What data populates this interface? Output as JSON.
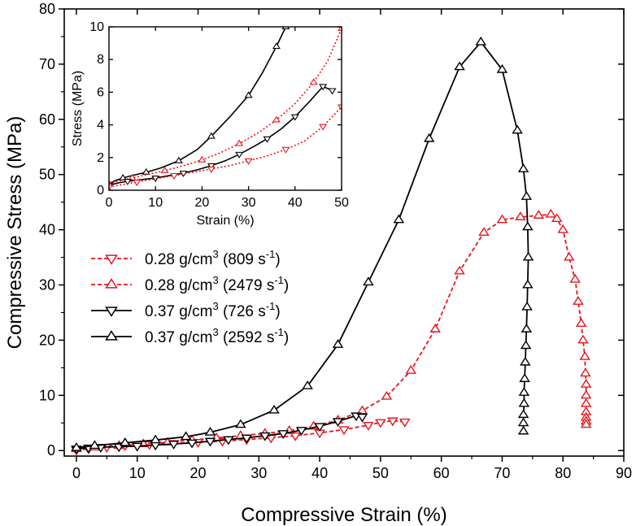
{
  "chart_data": {
    "type": "line",
    "xlabel": "Compressive Strain (%)",
    "ylabel": "Compressive Stress (MPa)",
    "xlim": [
      -2,
      90
    ],
    "ylim": [
      -1,
      80
    ],
    "xticks": [
      0,
      10,
      20,
      30,
      40,
      50,
      60,
      70,
      80,
      90
    ],
    "yticks": [
      0,
      10,
      20,
      30,
      40,
      50,
      60,
      70,
      80
    ],
    "legend_position": "center-left",
    "series": [
      {
        "name": "0.28 g/cm³ (809 s⁻¹)",
        "label": {
          "density": "0.28 g/cm",
          "sup1": "3",
          "rate": " (809 s",
          "sup2": "-1",
          "close": ")"
        },
        "color": "#e8141c",
        "dash": "dashed",
        "marker": "triangle-down",
        "x": [
          0,
          2,
          5,
          8,
          12,
          16,
          20,
          24,
          28,
          32,
          36,
          40,
          44,
          48,
          50,
          52,
          54
        ],
        "y": [
          0.1,
          0.3,
          0.6,
          0.9,
          1.1,
          1.3,
          1.5,
          1.7,
          2.0,
          2.3,
          2.7,
          3.2,
          3.8,
          4.6,
          5.1,
          5.4,
          5.2
        ]
      },
      {
        "name": "0.28 g/cm³ (2479 s⁻¹)",
        "label": {
          "density": "0.28 g/cm",
          "sup1": "3",
          "rate": " (2479 s",
          "sup2": "-1",
          "close": ")"
        },
        "color": "#e8141c",
        "dash": "dashed",
        "marker": "triangle-up",
        "x": [
          0,
          3,
          7,
          11,
          15,
          19,
          23,
          27,
          31,
          35,
          39,
          43,
          47,
          51,
          55,
          59,
          63,
          67,
          70,
          73,
          76,
          78,
          79,
          80,
          81,
          82,
          82.5,
          83,
          83.3,
          83.6,
          83.7,
          83.8,
          83.8,
          83.8,
          83.8,
          83.8,
          83.8,
          83.8
        ],
        "y": [
          0.3,
          0.6,
          0.9,
          1.2,
          1.5,
          1.9,
          2.3,
          2.7,
          3.1,
          3.6,
          4.4,
          5.5,
          7.2,
          9.8,
          14.5,
          22.0,
          32.5,
          39.5,
          41.8,
          42.3,
          42.6,
          42.8,
          42.0,
          40.0,
          35.0,
          31.0,
          27.0,
          23.0,
          20.0,
          17.0,
          14.0,
          12.0,
          10.0,
          8.5,
          7.0,
          6.0,
          5.3,
          4.7
        ]
      },
      {
        "name": "0.37 g/cm³ (726 s⁻¹)",
        "label": {
          "density": "0.37 g/cm",
          "sup1": "3",
          "rate": " (726 s",
          "sup2": "-1",
          "close": ")"
        },
        "color": "#000000",
        "dash": "solid",
        "marker": "triangle-down",
        "x": [
          0,
          2,
          4,
          7,
          10,
          13,
          16,
          19,
          22,
          25,
          28,
          31,
          34,
          37,
          40,
          43,
          46,
          47
        ],
        "y": [
          0.3,
          0.5,
          0.6,
          0.7,
          0.8,
          1.0,
          1.2,
          1.4,
          1.7,
          2.0,
          2.3,
          2.7,
          3.1,
          3.7,
          4.4,
          5.3,
          6.3,
          6.1
        ]
      },
      {
        "name": "0.37 g/cm³ (2592 s⁻¹)",
        "label": {
          "density": "0.37 g/cm",
          "sup1": "3",
          "rate": " (2592 s",
          "sup2": "-1",
          "close": ")"
        },
        "color": "#000000",
        "dash": "solid",
        "marker": "triangle-up",
        "x": [
          0,
          3,
          8,
          13,
          18,
          22,
          27,
          32.5,
          38,
          43,
          48,
          53,
          58,
          63,
          66.5,
          70,
          72.5,
          73.5,
          74,
          74.2,
          74.3,
          74.2,
          74.1,
          74.0,
          73.9,
          73.8,
          73.7,
          73.6,
          73.6,
          73.5,
          73.5,
          73.5
        ],
        "y": [
          0.5,
          0.9,
          1.4,
          1.9,
          2.5,
          3.3,
          4.7,
          7.3,
          11.7,
          19.2,
          30.5,
          41.8,
          56.5,
          69.5,
          74.0,
          69.0,
          58.0,
          51.0,
          46.0,
          40.5,
          35.0,
          30.0,
          26.0,
          22.0,
          19.0,
          16.0,
          13.0,
          10.5,
          8.5,
          6.5,
          5.0,
          3.5
        ]
      }
    ],
    "inset": {
      "xlabel": "Strain (%)",
      "ylabel": "Stress (MPa)",
      "xlim": [
        0,
        50
      ],
      "ylim": [
        0,
        10
      ],
      "xticks": [
        0,
        10,
        20,
        30,
        40,
        50
      ],
      "yticks": [
        0,
        2,
        4,
        6,
        8,
        10
      ],
      "series": [
        {
          "color": "#000000",
          "dash": "solid",
          "marker": "triangle-up",
          "x": [
            0,
            1.5,
            3,
            5,
            8,
            11,
            15,
            19,
            22,
            26,
            30,
            33,
            36,
            38
          ],
          "y": [
            0.4,
            0.6,
            0.75,
            0.9,
            1.1,
            1.35,
            1.8,
            2.5,
            3.3,
            4.5,
            5.8,
            7.2,
            8.8,
            10.0
          ]
        },
        {
          "color": "#e8141c",
          "dash": "dotted",
          "marker": "triangle-up",
          "x": [
            0,
            2,
            5,
            8,
            12,
            16,
            20,
            24,
            28,
            32,
            36,
            40,
            44,
            47,
            50
          ],
          "y": [
            0.4,
            0.55,
            0.75,
            0.95,
            1.2,
            1.5,
            1.85,
            2.3,
            2.85,
            3.5,
            4.3,
            5.3,
            6.6,
            7.9,
            9.9
          ]
        },
        {
          "color": "#000000",
          "dash": "solid",
          "marker": "triangle-down",
          "x": [
            0,
            2,
            4,
            7,
            10,
            13,
            16,
            19,
            22,
            25,
            28,
            31,
            34,
            37,
            40,
            43,
            46,
            48
          ],
          "y": [
            0.3,
            0.45,
            0.55,
            0.65,
            0.75,
            0.9,
            1.05,
            1.25,
            1.5,
            1.8,
            2.2,
            2.65,
            3.15,
            3.75,
            4.5,
            5.4,
            6.35,
            6.1
          ]
        },
        {
          "color": "#e8141c",
          "dash": "dotted",
          "marker": "triangle-down",
          "x": [
            0,
            3,
            6,
            10,
            14,
            18,
            22,
            26,
            30,
            34,
            38,
            42,
            46,
            50
          ],
          "y": [
            0.2,
            0.35,
            0.5,
            0.7,
            0.9,
            1.1,
            1.3,
            1.5,
            1.8,
            2.1,
            2.5,
            3.0,
            3.9,
            5.1
          ]
        }
      ]
    }
  }
}
